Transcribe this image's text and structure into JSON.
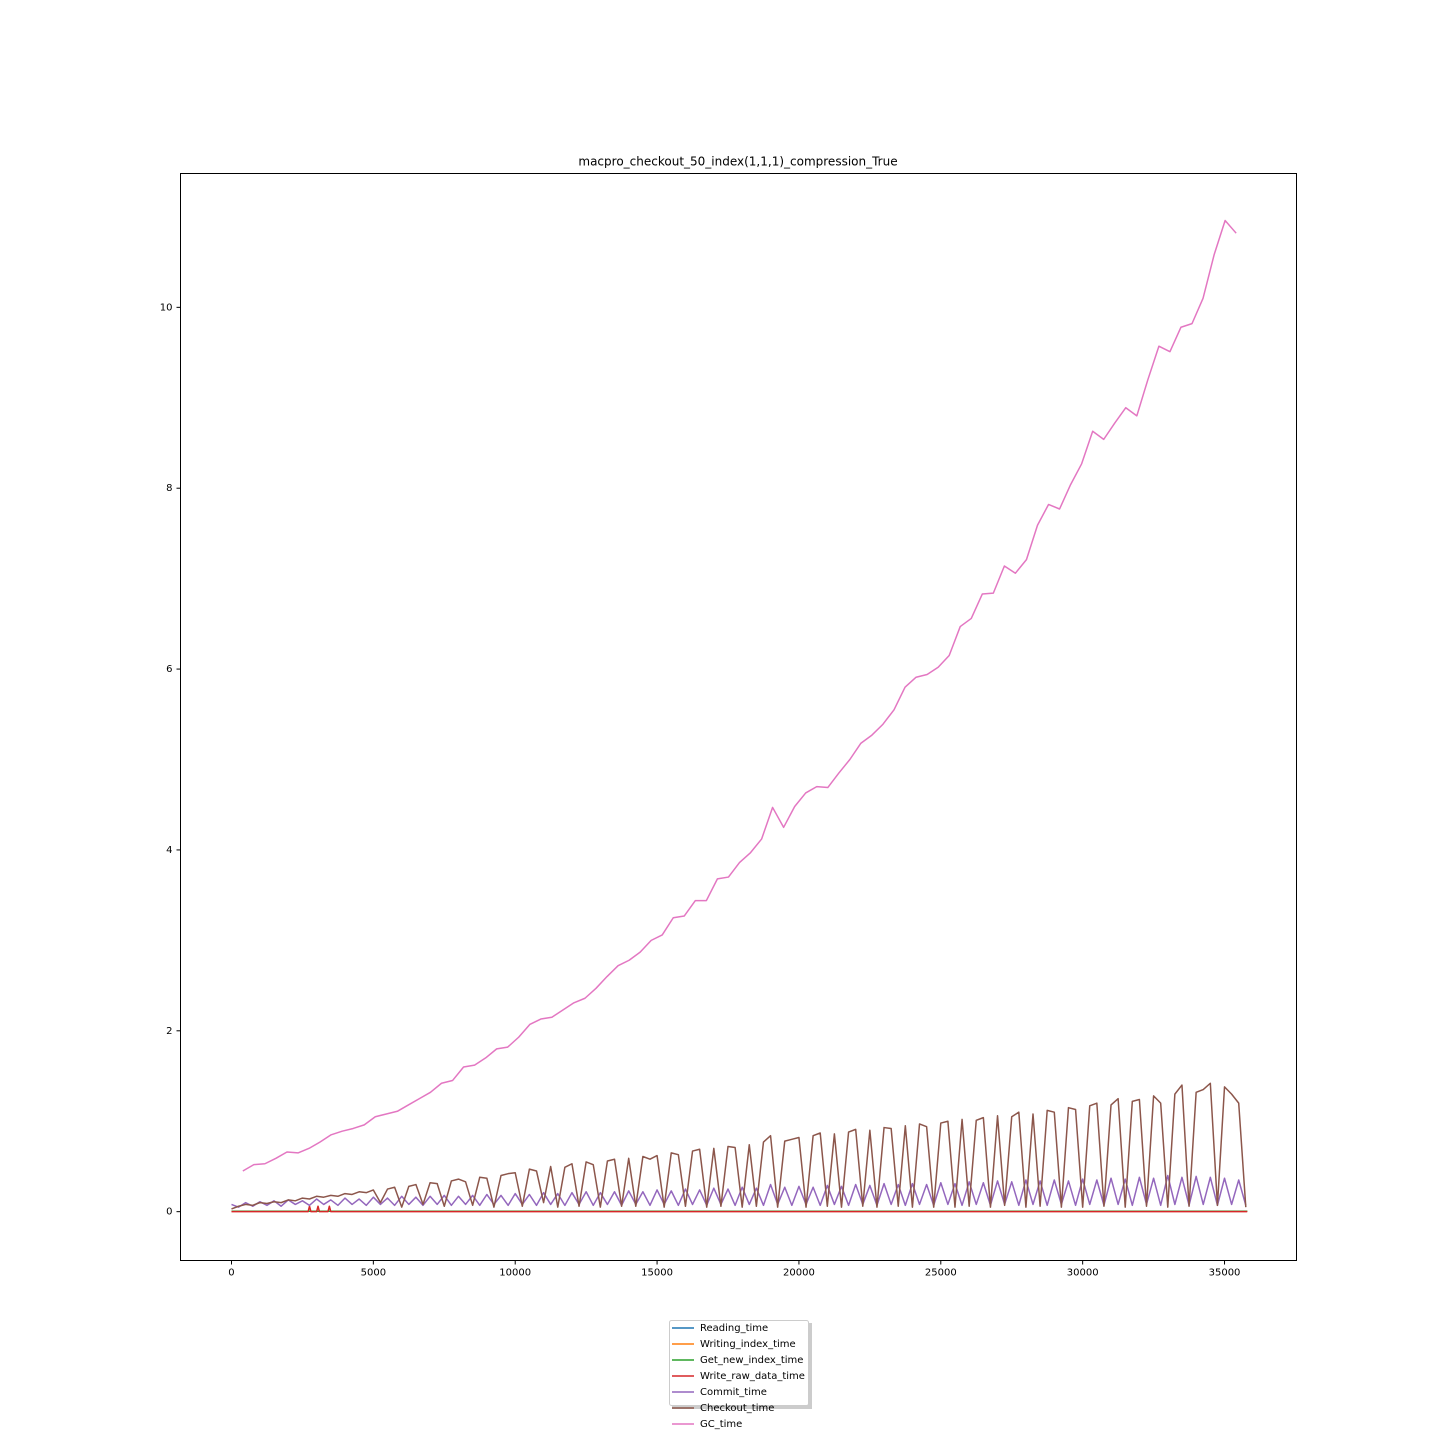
{
  "chart_data": {
    "type": "line",
    "title": "macpro_checkout_50_index(1,1,1)_compression_True",
    "xlim": [
      -1797,
      37537
    ],
    "xticks": [
      0,
      5000,
      10000,
      15000,
      20000,
      25000,
      30000,
      35000
    ],
    "ylim": [
      -0.54,
      11.48
    ],
    "yticks": [
      0,
      2,
      4,
      6,
      8,
      10
    ],
    "grid": false,
    "legend": "below",
    "series": [
      {
        "name": "Reading_time",
        "color": "#1f77b4",
        "x": [
          0,
          35800
        ],
        "values": [
          0.005,
          0.005
        ]
      },
      {
        "name": "Writing_index_time",
        "color": "#ff7f0e",
        "x": [
          0,
          35800
        ],
        "values": [
          0.005,
          0.005
        ]
      },
      {
        "name": "Get_new_index_time",
        "color": "#2ca02c",
        "x": [
          0,
          35800
        ],
        "values": [
          0.005,
          0.005
        ]
      },
      {
        "name": "Write_raw_data_time",
        "color": "#d62728",
        "x": [
          0,
          2700,
          2750,
          2800,
          3000,
          3050,
          3100,
          3400,
          3450,
          3500,
          35800
        ],
        "values": [
          0,
          0,
          0.06,
          0,
          0,
          0.06,
          0,
          0,
          0.06,
          0,
          0
        ]
      },
      {
        "name": "Commit_time",
        "color": "#9467bd",
        "x": [
          0,
          250,
          500,
          750,
          1000,
          1250,
          1500,
          1750,
          2000,
          2250,
          2500,
          2750,
          3000,
          3250,
          3500,
          3750,
          4000,
          4250,
          4500,
          4750,
          5000,
          5250,
          5500,
          5750,
          6000,
          6250,
          6500,
          6750,
          7000,
          7250,
          7500,
          7750,
          8000,
          8250,
          8500,
          8750,
          9000,
          9250,
          9500,
          9750,
          10000,
          10250,
          10500,
          10750,
          11000,
          11250,
          11500,
          11750,
          12000,
          12250,
          12500,
          12750,
          13000,
          13250,
          13500,
          13750,
          14000,
          14250,
          14500,
          14750,
          15000,
          15250,
          15500,
          15750,
          16000,
          16250,
          16500,
          16750,
          17000,
          17250,
          17500,
          17750,
          18000,
          18250,
          18500,
          18750,
          19000,
          19250,
          19500,
          19750,
          20000,
          20250,
          20500,
          20750,
          21000,
          21250,
          21500,
          21750,
          22000,
          22250,
          22500,
          22750,
          23000,
          23250,
          23500,
          23750,
          24000,
          24250,
          24500,
          24750,
          25000,
          25250,
          25500,
          25750,
          26000,
          26250,
          26500,
          26750,
          27000,
          27250,
          27500,
          27750,
          28000,
          28250,
          28500,
          28750,
          29000,
          29250,
          29500,
          29750,
          30000,
          30250,
          30500,
          30750,
          31000,
          31250,
          31500,
          31750,
          32000,
          32250,
          32500,
          32750,
          33000,
          33250,
          33500,
          33750,
          34000,
          34250,
          34500,
          34750,
          35000,
          35250,
          35500,
          35750
        ],
        "values": [
          0.08,
          0.05,
          0.1,
          0.06,
          0.11,
          0.07,
          0.12,
          0.06,
          0.13,
          0.08,
          0.12,
          0.07,
          0.14,
          0.08,
          0.13,
          0.07,
          0.15,
          0.08,
          0.14,
          0.07,
          0.16,
          0.08,
          0.15,
          0.07,
          0.17,
          0.08,
          0.16,
          0.07,
          0.17,
          0.08,
          0.18,
          0.07,
          0.17,
          0.08,
          0.18,
          0.07,
          0.19,
          0.08,
          0.18,
          0.07,
          0.2,
          0.08,
          0.19,
          0.07,
          0.21,
          0.08,
          0.2,
          0.07,
          0.21,
          0.08,
          0.22,
          0.07,
          0.21,
          0.08,
          0.22,
          0.07,
          0.23,
          0.08,
          0.22,
          0.07,
          0.24,
          0.08,
          0.23,
          0.07,
          0.25,
          0.08,
          0.24,
          0.07,
          0.26,
          0.08,
          0.25,
          0.07,
          0.27,
          0.08,
          0.26,
          0.07,
          0.3,
          0.08,
          0.27,
          0.07,
          0.28,
          0.08,
          0.27,
          0.07,
          0.29,
          0.08,
          0.28,
          0.07,
          0.3,
          0.08,
          0.29,
          0.07,
          0.31,
          0.08,
          0.3,
          0.07,
          0.31,
          0.08,
          0.3,
          0.07,
          0.32,
          0.08,
          0.31,
          0.07,
          0.33,
          0.08,
          0.32,
          0.07,
          0.34,
          0.08,
          0.33,
          0.07,
          0.35,
          0.08,
          0.34,
          0.07,
          0.35,
          0.08,
          0.34,
          0.07,
          0.36,
          0.08,
          0.35,
          0.07,
          0.37,
          0.08,
          0.36,
          0.07,
          0.38,
          0.08,
          0.37,
          0.07,
          0.4,
          0.08,
          0.38,
          0.07,
          0.39,
          0.08,
          0.38,
          0.07,
          0.37,
          0.08,
          0.35,
          0.07
        ]
      },
      {
        "name": "Checkout_time",
        "color": "#8c564b",
        "x": [
          0,
          250,
          500,
          750,
          1000,
          1250,
          1500,
          1750,
          2000,
          2250,
          2500,
          2750,
          3000,
          3250,
          3500,
          3750,
          4000,
          4250,
          4500,
          4750,
          5000,
          5250,
          5500,
          5750,
          6000,
          6250,
          6500,
          6750,
          7000,
          7250,
          7500,
          7750,
          8000,
          8250,
          8500,
          8750,
          9000,
          9250,
          9500,
          9750,
          10000,
          10250,
          10500,
          10750,
          11000,
          11250,
          11500,
          11750,
          12000,
          12250,
          12500,
          12750,
          13000,
          13250,
          13500,
          13750,
          14000,
          14250,
          14500,
          14750,
          15000,
          15250,
          15500,
          15750,
          16000,
          16250,
          16500,
          16750,
          17000,
          17250,
          17500,
          17750,
          18000,
          18250,
          18500,
          18750,
          19000,
          19250,
          19500,
          19750,
          20000,
          20250,
          20500,
          20750,
          21000,
          21250,
          21500,
          21750,
          22000,
          22250,
          22500,
          22750,
          23000,
          23250,
          23500,
          23750,
          24000,
          24250,
          24500,
          24750,
          25000,
          25250,
          25500,
          25750,
          26000,
          26250,
          26500,
          26750,
          27000,
          27250,
          27500,
          27750,
          28000,
          28250,
          28500,
          28750,
          29000,
          29250,
          29500,
          29750,
          30000,
          30250,
          30500,
          30750,
          31000,
          31250,
          31500,
          31750,
          32000,
          32250,
          32500,
          32750,
          33000,
          33250,
          33500,
          33750,
          34000,
          34250,
          34500,
          34750,
          35000,
          35250,
          35500,
          35750
        ],
        "values": [
          0.03,
          0.06,
          0.08,
          0.07,
          0.1,
          0.09,
          0.11,
          0.1,
          0.13,
          0.12,
          0.15,
          0.14,
          0.17,
          0.16,
          0.18,
          0.17,
          0.2,
          0.19,
          0.22,
          0.21,
          0.24,
          0.1,
          0.25,
          0.27,
          0.05,
          0.28,
          0.3,
          0.08,
          0.32,
          0.31,
          0.06,
          0.34,
          0.36,
          0.33,
          0.07,
          0.38,
          0.37,
          0.05,
          0.4,
          0.42,
          0.43,
          0.06,
          0.47,
          0.45,
          0.1,
          0.5,
          0.05,
          0.49,
          0.53,
          0.06,
          0.55,
          0.52,
          0.05,
          0.56,
          0.58,
          0.06,
          0.59,
          0.06,
          0.61,
          0.58,
          0.62,
          0.05,
          0.65,
          0.63,
          0.06,
          0.67,
          0.69,
          0.05,
          0.7,
          0.06,
          0.72,
          0.71,
          0.05,
          0.74,
          0.06,
          0.77,
          0.84,
          0.05,
          0.78,
          0.8,
          0.82,
          0.05,
          0.84,
          0.87,
          0.06,
          0.86,
          0.05,
          0.88,
          0.91,
          0.06,
          0.9,
          0.05,
          0.93,
          0.92,
          0.06,
          0.95,
          0.05,
          0.97,
          0.94,
          0.05,
          0.98,
          1.0,
          0.05,
          1.02,
          0.06,
          1.01,
          1.04,
          0.05,
          1.06,
          0.07,
          1.05,
          1.1,
          0.05,
          1.08,
          0.06,
          1.12,
          1.1,
          0.05,
          1.15,
          1.13,
          0.05,
          1.17,
          1.2,
          0.06,
          1.18,
          1.25,
          0.05,
          1.22,
          1.24,
          0.06,
          1.28,
          1.2,
          0.05,
          1.3,
          1.4,
          0.06,
          1.32,
          1.35,
          1.42,
          0.07,
          1.38,
          1.3,
          1.2,
          0.05
        ]
      },
      {
        "name": "GC_time",
        "color": "#e377c2",
        "x": [
          400,
          789,
          1178,
          1567,
          1956,
          2345,
          2734,
          3123,
          3512,
          3901,
          4290,
          4679,
          5068,
          5457,
          5846,
          6235,
          6624,
          7013,
          7402,
          7791,
          8180,
          8569,
          8958,
          9347,
          9736,
          10125,
          10514,
          10903,
          11292,
          11681,
          12070,
          12459,
          12848,
          13237,
          13626,
          14015,
          14404,
          14793,
          15182,
          15571,
          15960,
          16349,
          16738,
          17127,
          17516,
          17905,
          18294,
          18683,
          19072,
          19461,
          19850,
          20239,
          20628,
          21017,
          21406,
          21795,
          22184,
          22573,
          22962,
          23351,
          23740,
          24129,
          24518,
          24907,
          25296,
          25685,
          26074,
          26463,
          26852,
          27241,
          27630,
          28019,
          28408,
          28797,
          29186,
          29575,
          29964,
          30353,
          30742,
          31131,
          31520,
          31909,
          32298,
          32687,
          33076,
          33465,
          33854,
          34243,
          34632,
          35021,
          35410
        ],
        "values": [
          0.45,
          0.52,
          0.53,
          0.59,
          0.66,
          0.65,
          0.7,
          0.77,
          0.85,
          0.89,
          0.92,
          0.96,
          1.05,
          1.08,
          1.11,
          1.18,
          1.25,
          1.32,
          1.42,
          1.45,
          1.6,
          1.62,
          1.7,
          1.8,
          1.82,
          1.93,
          2.07,
          2.13,
          2.15,
          2.23,
          2.31,
          2.36,
          2.47,
          2.6,
          2.72,
          2.78,
          2.87,
          3.0,
          3.06,
          3.25,
          3.27,
          3.44,
          3.44,
          3.68,
          3.7,
          3.86,
          3.97,
          4.12,
          4.47,
          4.25,
          4.48,
          4.63,
          4.7,
          4.69,
          4.85,
          5.0,
          5.18,
          5.27,
          5.39,
          5.55,
          5.8,
          5.91,
          5.94,
          6.02,
          6.15,
          6.47,
          6.56,
          6.83,
          6.84,
          7.14,
          7.06,
          7.21,
          7.59,
          7.82,
          7.77,
          8.04,
          8.27,
          8.63,
          8.54,
          8.72,
          8.89,
          8.8,
          9.2,
          9.57,
          9.51,
          9.78,
          9.82,
          10.1,
          10.58,
          10.96,
          10.82
        ]
      }
    ]
  }
}
